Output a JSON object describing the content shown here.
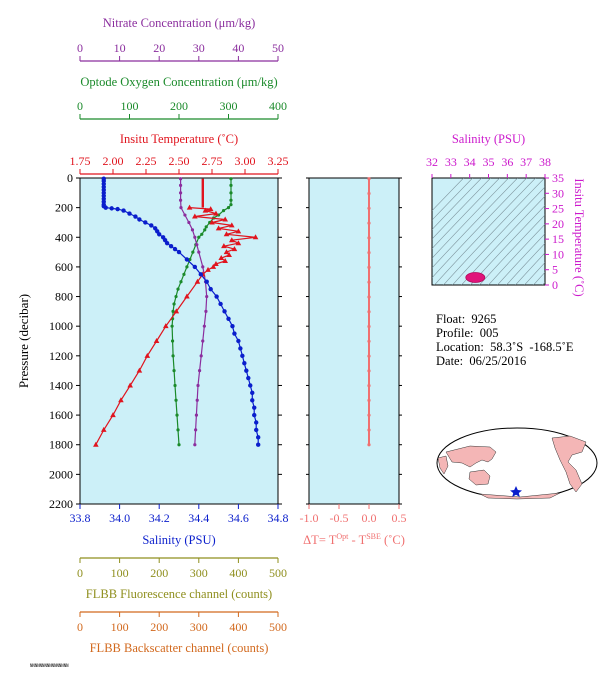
{
  "colors": {
    "nitrate": "#8b2e9e",
    "oxygen": "#1a8a2a",
    "temperature": "#e0141e",
    "salinity": "#0a1ecc",
    "fluorescence": "#8f8f1e",
    "backscatter": "#d2691e",
    "magenta": "#cc19cc",
    "delta_t": "#f07070",
    "plot_bg": "#ccf0f8"
  },
  "chart_data": [
    {
      "type": "line",
      "title": "",
      "ylabel": "Pressure (decibar)",
      "ylim": [
        0,
        2200
      ],
      "y_ticks": [
        "0",
        "200",
        "400",
        "600",
        "800",
        "1000",
        "1200",
        "1400",
        "1600",
        "1800",
        "2000",
        "2200"
      ],
      "axes": {
        "nitrate": {
          "label": "Nitrate Concentration (μm/kg)",
          "range": [
            0,
            50
          ],
          "ticks": [
            "0",
            "10",
            "20",
            "30",
            "40",
            "50"
          ]
        },
        "oxygen": {
          "label": "Optode Oxygen Concentration (μm/kg)",
          "range": [
            0,
            400
          ],
          "ticks": [
            "0",
            "100",
            "200",
            "300",
            "400"
          ]
        },
        "temperature": {
          "label": "Insitu Temperature (˚C)",
          "range": [
            1.75,
            3.25
          ],
          "ticks": [
            "1.75",
            "2.00",
            "2.25",
            "2.50",
            "2.75",
            "3.00",
            "3.25"
          ]
        },
        "salinity": {
          "label": "Salinity (PSU)",
          "range": [
            33.8,
            34.8
          ],
          "ticks": [
            "33.8",
            "34.0",
            "34.2",
            "34.4",
            "34.6",
            "34.8"
          ]
        },
        "fluorescence": {
          "label": "FLBB Fluorescence channel (counts)",
          "range": [
            0,
            500
          ],
          "ticks": [
            "0",
            "100",
            "200",
            "300",
            "400",
            "500"
          ]
        },
        "backscatter": {
          "label": "FLBB Backscatter channel (counts)",
          "range": [
            0,
            500
          ],
          "ticks": [
            "0",
            "100",
            "200",
            "300",
            "400",
            "500"
          ]
        }
      },
      "series": [
        {
          "key": "salinity",
          "p": [
            5,
            20,
            40,
            60,
            80,
            100,
            120,
            140,
            160,
            180,
            190,
            200,
            205,
            210,
            220,
            240,
            260,
            280,
            300,
            320,
            340,
            360,
            380,
            400,
            420,
            440,
            460,
            480,
            500,
            550,
            600,
            650,
            700,
            750,
            800,
            850,
            900,
            950,
            1000,
            1050,
            1100,
            1150,
            1200,
            1250,
            1300,
            1350,
            1400,
            1450,
            1500,
            1550,
            1600,
            1650,
            1700,
            1750,
            1800
          ],
          "v": [
            33.92,
            33.92,
            33.92,
            33.92,
            33.92,
            33.92,
            33.92,
            33.92,
            33.92,
            33.92,
            33.92,
            33.93,
            33.96,
            33.99,
            34.02,
            34.05,
            34.08,
            34.1,
            34.13,
            34.16,
            34.18,
            34.19,
            34.2,
            34.22,
            34.23,
            34.24,
            34.26,
            34.28,
            34.3,
            34.34,
            34.38,
            34.41,
            34.44,
            34.46,
            34.49,
            34.51,
            34.53,
            34.55,
            34.57,
            34.58,
            34.6,
            34.61,
            34.62,
            34.63,
            34.64,
            34.65,
            34.66,
            34.67,
            34.67,
            34.68,
            34.68,
            34.69,
            34.69,
            34.7,
            34.7
          ]
        },
        {
          "key": "temperature",
          "p": [
            200,
            210,
            220,
            240,
            260,
            280,
            300,
            320,
            340,
            360,
            380,
            400,
            420,
            440,
            460,
            480,
            500,
            520,
            540,
            560,
            580,
            600,
            620,
            650,
            700,
            800,
            900,
            1000,
            1100,
            1200,
            1300,
            1400,
            1500,
            1600,
            1700,
            1800
          ],
          "v": [
            2.58,
            2.74,
            2.7,
            2.78,
            2.62,
            2.85,
            2.75,
            2.9,
            2.8,
            2.95,
            2.86,
            3.08,
            2.9,
            2.95,
            2.84,
            2.92,
            2.86,
            2.88,
            2.82,
            2.85,
            2.78,
            2.76,
            2.72,
            2.68,
            2.64,
            2.56,
            2.48,
            2.4,
            2.33,
            2.26,
            2.2,
            2.13,
            2.06,
            2.0,
            1.93,
            1.87
          ]
        },
        {
          "key": "oxygen",
          "p": [
            5,
            50,
            100,
            150,
            180,
            200,
            220,
            250,
            270,
            300,
            330,
            350,
            380,
            400,
            450,
            500,
            550,
            600,
            650,
            700,
            750,
            800,
            850,
            900,
            950,
            1000,
            1100,
            1200,
            1300,
            1400,
            1500,
            1600,
            1700,
            1800
          ],
          "v": [
            305,
            305,
            305,
            305,
            305,
            300,
            290,
            280,
            270,
            262,
            255,
            252,
            246,
            240,
            234,
            228,
            222,
            216,
            210,
            204,
            198,
            194,
            190,
            188,
            187,
            186,
            187,
            188,
            190,
            192,
            194,
            196,
            198,
            200
          ]
        },
        {
          "key": "nitrate",
          "p": [
            5,
            50,
            100,
            150,
            200,
            250,
            300,
            350,
            400,
            450,
            500,
            600,
            700,
            800,
            900,
            1000,
            1100,
            1200,
            1300,
            1400,
            1500,
            1600,
            1700,
            1800
          ],
          "v": [
            25.4,
            25.4,
            25.4,
            25.4,
            25.5,
            26.5,
            27.5,
            28.4,
            29.0,
            29.5,
            30,
            31,
            31.7,
            32,
            31.8,
            31.4,
            31,
            30.6,
            30.2,
            29.8,
            29.6,
            29.4,
            29.2,
            29
          ]
        },
        {
          "key": "temperature_upper",
          "p": [
            5,
            50,
            100,
            150,
            200
          ],
          "v": [
            2.68,
            2.68,
            2.68,
            2.68,
            2.68
          ]
        }
      ]
    },
    {
      "type": "line",
      "xlabel": "ΔT= T^Opt - T^SBE (˚C)",
      "xlabel_parts": {
        "prefix": "ΔT= T",
        "sup1": "Opt",
        "mid": " - T",
        "sup2": "SBE",
        "suffix": " (˚C)"
      },
      "xlim": [
        -1.0,
        0.5
      ],
      "x_ticks": [
        "-1.0",
        "-0.5",
        "0.0",
        "0.5"
      ],
      "ylim": [
        0,
        2200
      ],
      "series": [
        {
          "name": "",
          "values": [
            0.0,
            0.0,
            0.0,
            0.0,
            0.0,
            0.0,
            0.0,
            0.0,
            0.0,
            0.0,
            0.0,
            0.0,
            0.0,
            0.0,
            0.0,
            0.0,
            0.0,
            0.0,
            0.0
          ]
        }
      ]
    },
    {
      "type": "scatter",
      "title": "Salinity (PSU)",
      "x_ticks": [
        "32",
        "33",
        "34",
        "35",
        "36",
        "37",
        "38"
      ],
      "xlim": [
        32,
        38
      ],
      "ylabel": "Insitu Temperature (˚C)",
      "y_ticks": [
        "0",
        "5",
        "10",
        "15",
        "20",
        "25",
        "30",
        "35"
      ],
      "ylim": [
        0,
        35
      ],
      "cluster": {
        "salinity_range": [
          33.9,
          34.7
        ],
        "temperature_range": [
          1.8,
          3.1
        ]
      }
    }
  ],
  "float_info": {
    "float": "Float:  9265",
    "profile": "Profile:  005",
    "location": "Location:  58.3˚S  -168.5˚E",
    "date": "Date:  06/25/2016"
  },
  "footer_text": "NNNNNNNNNNNNNNNN"
}
